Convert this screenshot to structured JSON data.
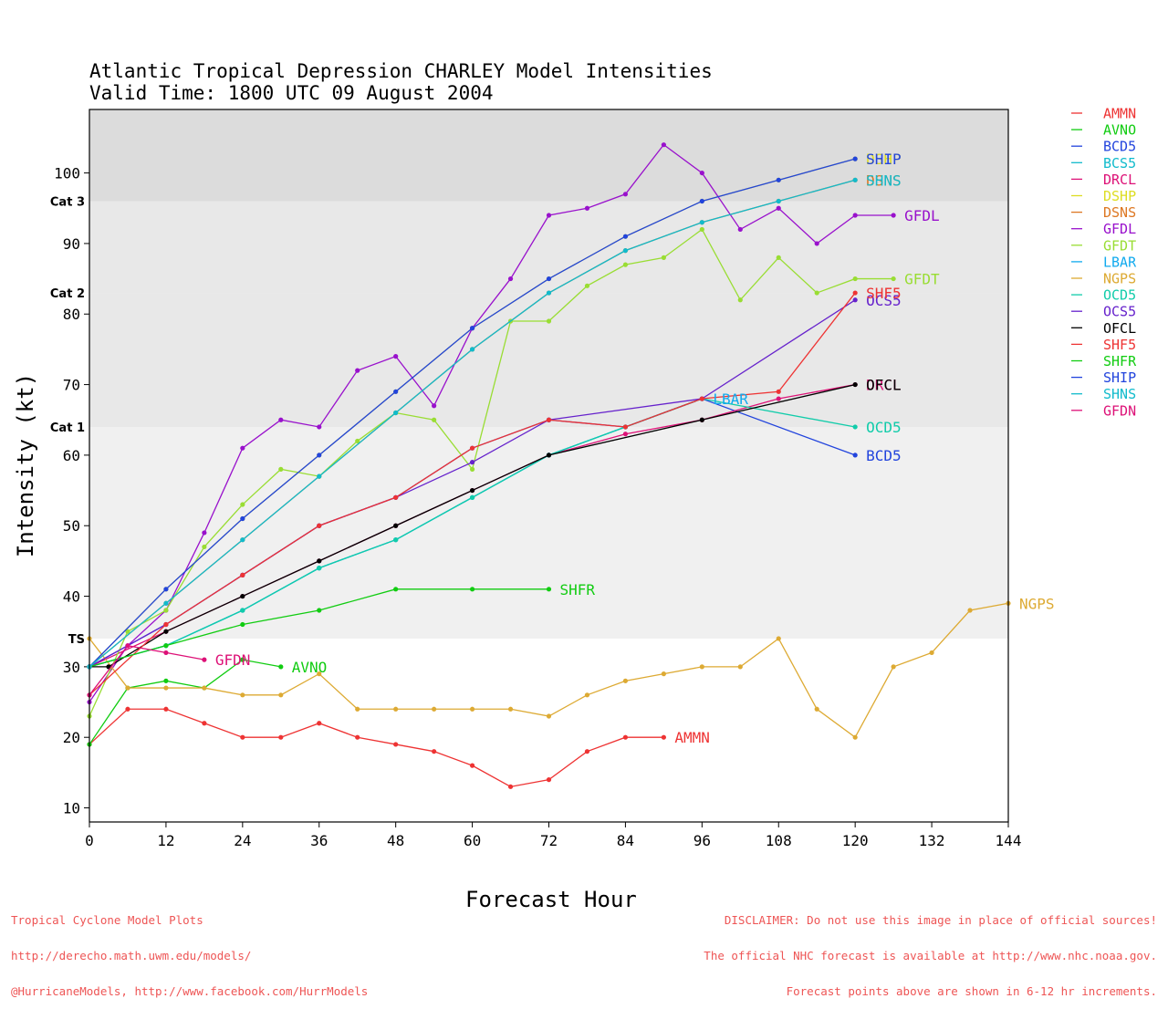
{
  "title_line1": "Atlantic Tropical Depression CHARLEY Model Intensities",
  "title_line2": "Valid Time: 1800 UTC 09 August 2004",
  "xlabel": "Forecast Hour",
  "ylabel": "Intensity (kt)",
  "footer_left": [
    "Tropical Cyclone Model Plots",
    "http://derecho.math.uwm.edu/models/",
    "@HurricaneModels, http://www.facebook.com/HurrModels"
  ],
  "footer_right": [
    "DISCLAIMER: Do not use this image in place of official sources!",
    "The official NHC forecast is available at http://www.nhc.noaa.gov.",
    "Forecast points above are shown in 6-12 hr increments."
  ],
  "chart_data": {
    "type": "line",
    "xlim": [
      0,
      144
    ],
    "ylim": [
      8,
      109
    ],
    "x_ticks": [
      0,
      12,
      24,
      36,
      48,
      60,
      72,
      84,
      96,
      108,
      120,
      132,
      144
    ],
    "y_ticks": [
      10,
      20,
      30,
      40,
      50,
      60,
      70,
      80,
      90,
      100
    ],
    "category_bands": [
      {
        "label": "TS",
        "from": 34,
        "to": 64,
        "color": "#f0f0f0"
      },
      {
        "label": "Cat 1",
        "from": 64,
        "to": 83,
        "color": "#e8e8e8"
      },
      {
        "label": "Cat 2",
        "from": 83,
        "to": 96,
        "color": "#e8e8e8"
      },
      {
        "label": "Cat 3",
        "from": 96,
        "to": 109,
        "color": "#dcdcdc"
      }
    ],
    "series": [
      {
        "name": "AMMN",
        "color": "#ee3333",
        "end_label": "AMMN",
        "x": [
          0,
          6,
          12,
          18,
          24,
          30,
          36,
          42,
          48,
          54,
          60,
          66,
          72,
          78,
          84,
          90
        ],
        "y": [
          19,
          24,
          24,
          22,
          20,
          20,
          22,
          20,
          19,
          18,
          16,
          13,
          14,
          18,
          20,
          20
        ]
      },
      {
        "name": "AVNO",
        "color": "#11cc11",
        "end_label": "AVNO",
        "x": [
          0,
          6,
          12,
          18,
          24,
          30
        ],
        "y": [
          19,
          27,
          28,
          27,
          31,
          30
        ]
      },
      {
        "name": "BCD5",
        "color": "#2244dd",
        "end_label": "BCD5",
        "x": [
          0,
          12,
          24,
          36,
          48,
          60,
          72,
          84,
          96,
          120
        ],
        "y": [
          30,
          36,
          43,
          50,
          54,
          61,
          65,
          64,
          68,
          60
        ]
      },
      {
        "name": "BCS5",
        "color": "#11bbcc",
        "end_label": "",
        "x": [
          0,
          12,
          24,
          36,
          48,
          60,
          72,
          84,
          96
        ],
        "y": [
          30,
          33,
          38,
          44,
          48,
          54,
          60,
          64,
          68
        ]
      },
      {
        "name": "DRCL",
        "color": "#dd1177",
        "end_label": "DRCL",
        "x": [
          0,
          12,
          24,
          36,
          48,
          60,
          72,
          84,
          96,
          108,
          120
        ],
        "y": [
          30,
          35,
          40,
          45,
          50,
          55,
          60,
          63,
          65,
          68,
          70
        ]
      },
      {
        "name": "DSHP",
        "color": "#dddd22",
        "end_label": "DSHP",
        "x": [
          0,
          12,
          24,
          36,
          48,
          60,
          72,
          84,
          96,
          108,
          120
        ],
        "y": [
          30,
          41,
          51,
          60,
          69,
          78,
          85,
          91,
          96,
          99,
          102
        ]
      },
      {
        "name": "DSNS",
        "color": "#dd7722",
        "end_label": "DSNS",
        "x": [
          0,
          12,
          24,
          36,
          48,
          60,
          72,
          84,
          96,
          108,
          120
        ],
        "y": [
          30,
          39,
          48,
          57,
          66,
          75,
          83,
          89,
          93,
          96,
          99
        ]
      },
      {
        "name": "GFDL",
        "color": "#9911cc",
        "end_label": "GFDL",
        "x": [
          0,
          6,
          12,
          18,
          24,
          30,
          36,
          42,
          48,
          54,
          60,
          66,
          72,
          78,
          84,
          90,
          96,
          102,
          108,
          114,
          120,
          126
        ],
        "y": [
          25,
          33,
          38,
          49,
          61,
          65,
          64,
          72,
          74,
          67,
          78,
          85,
          94,
          95,
          97,
          104,
          100,
          92,
          95,
          90,
          94,
          94
        ]
      },
      {
        "name": "GFDT",
        "color": "#99dd33",
        "end_label": "GFDT",
        "x": [
          0,
          6,
          12,
          18,
          24,
          30,
          36,
          42,
          48,
          54,
          60,
          66,
          72,
          78,
          84,
          90,
          96,
          102,
          108,
          114,
          120,
          126
        ],
        "y": [
          23,
          35,
          38,
          47,
          53,
          58,
          57,
          62,
          66,
          65,
          58,
          79,
          79,
          84,
          87,
          88,
          92,
          82,
          88,
          83,
          85,
          85
        ]
      },
      {
        "name": "LBAR",
        "color": "#11aaee",
        "end_label": "LBAR",
        "x": [
          0,
          12,
          24,
          36,
          48,
          60,
          72,
          84,
          96
        ],
        "y": [
          30,
          33,
          38,
          44,
          48,
          54,
          60,
          64,
          68
        ]
      },
      {
        "name": "NGPS",
        "color": "#ddaa33",
        "end_label": "NGPS",
        "x": [
          0,
          6,
          12,
          18,
          24,
          30,
          36,
          42,
          48,
          54,
          60,
          66,
          72,
          78,
          84,
          90,
          96,
          102,
          108,
          114,
          120,
          126,
          132,
          138,
          144
        ],
        "y": [
          34,
          27,
          27,
          27,
          26,
          26,
          29,
          24,
          24,
          24,
          24,
          24,
          23,
          26,
          28,
          29,
          30,
          30,
          34,
          24,
          20,
          30,
          32,
          38,
          39
        ]
      },
      {
        "name": "OCD5",
        "color": "#11ccaa",
        "end_label": "OCD5",
        "x": [
          0,
          12,
          24,
          36,
          48,
          60,
          72,
          84,
          96,
          120
        ],
        "y": [
          30,
          33,
          38,
          44,
          48,
          54,
          60,
          64,
          68,
          64
        ]
      },
      {
        "name": "OCS5",
        "color": "#6622cc",
        "end_label": "OCS5",
        "x": [
          0,
          12,
          24,
          36,
          48,
          60,
          72,
          96,
          120
        ],
        "y": [
          30,
          36,
          43,
          50,
          54,
          59,
          65,
          68,
          82
        ]
      },
      {
        "name": "OFCL",
        "color": "#000000",
        "end_label": "OFCL",
        "x": [
          0,
          3,
          12,
          24,
          36,
          48,
          60,
          72,
          96,
          120
        ],
        "y": [
          30,
          30,
          35,
          40,
          45,
          50,
          55,
          60,
          65,
          70
        ]
      },
      {
        "name": "SHF5",
        "color": "#ee3333",
        "end_label": "SHF5",
        "x": [
          0,
          12,
          24,
          36,
          48,
          60,
          72,
          84,
          96,
          108,
          120
        ],
        "y": [
          26,
          36,
          43,
          50,
          54,
          61,
          65,
          64,
          68,
          69,
          83
        ]
      },
      {
        "name": "SHFR",
        "color": "#11cc11",
        "end_label": "SHFR",
        "x": [
          0,
          12,
          24,
          36,
          48,
          60,
          72
        ],
        "y": [
          30,
          33,
          36,
          38,
          41,
          41,
          41
        ]
      },
      {
        "name": "SHIP",
        "color": "#2244dd",
        "end_label": "SHIP",
        "x": [
          0,
          12,
          24,
          36,
          48,
          60,
          72,
          84,
          96,
          108,
          120
        ],
        "y": [
          30,
          41,
          51,
          60,
          69,
          78,
          85,
          91,
          96,
          99,
          102
        ]
      },
      {
        "name": "SHNS",
        "color": "#11bbcc",
        "end_label": "SHNS",
        "x": [
          0,
          12,
          24,
          36,
          48,
          60,
          72,
          84,
          96,
          108,
          120
        ],
        "y": [
          30,
          39,
          48,
          57,
          66,
          75,
          83,
          89,
          93,
          96,
          99
        ]
      },
      {
        "name": "GFDN",
        "color": "#dd1177",
        "end_label": "GFDN",
        "x": [
          0,
          6,
          12,
          18
        ],
        "y": [
          26,
          33,
          32,
          31
        ]
      }
    ]
  }
}
